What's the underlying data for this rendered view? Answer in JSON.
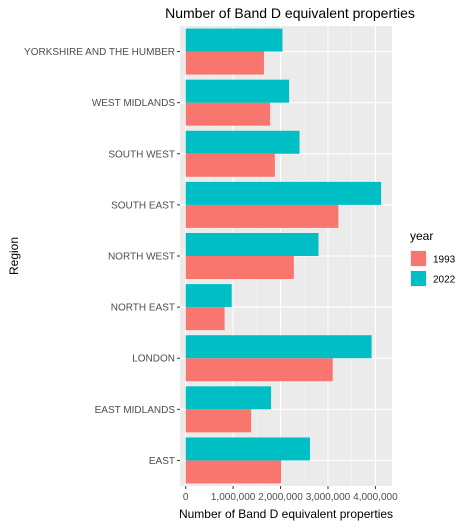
{
  "chart_data": {
    "type": "bar",
    "orientation": "horizontal",
    "title": "Number of Band D equivalent properties",
    "xlabel": "Number of Band D equivalent properties",
    "ylabel": "Region",
    "categories": [
      "YORKSHIRE AND THE HUMBER",
      "WEST MIDLANDS",
      "SOUTH WEST",
      "SOUTH EAST",
      "NORTH WEST",
      "NORTH EAST",
      "LONDON",
      "EAST MIDLANDS",
      "EAST"
    ],
    "series": [
      {
        "name": "1993",
        "color": "#F8766D",
        "values": [
          1650000,
          1780000,
          1880000,
          3220000,
          2280000,
          820000,
          3100000,
          1380000,
          2010000
        ]
      },
      {
        "name": "2022",
        "color": "#00BFC4",
        "values": [
          2040000,
          2180000,
          2400000,
          4120000,
          2800000,
          970000,
          3920000,
          1800000,
          2620000
        ]
      }
    ],
    "xlim": [
      -120000,
      4350000
    ],
    "xticks": [
      0,
      1000000,
      2000000,
      3000000,
      4000000
    ],
    "xtick_labels": [
      "0",
      "1,000,000",
      "2,000,000",
      "3,000,000",
      "4,000,000"
    ],
    "legend": {
      "title": "year",
      "placement": "right"
    },
    "grid": true
  }
}
